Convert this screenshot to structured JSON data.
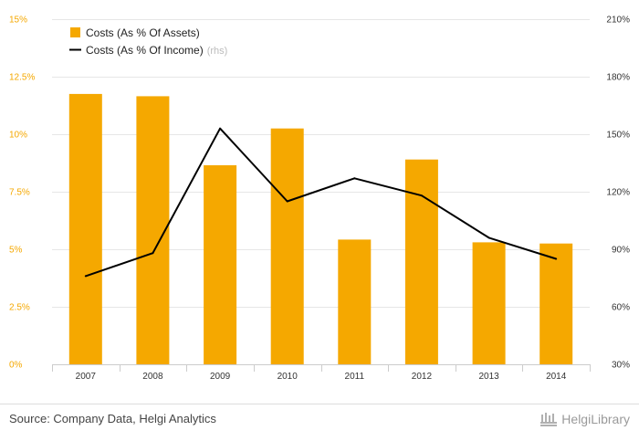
{
  "chart_data": {
    "type": "bar",
    "categories": [
      "2007",
      "2008",
      "2009",
      "2010",
      "2011",
      "2012",
      "2013",
      "2014"
    ],
    "series": [
      {
        "name": "Costs (As % Of Assets)",
        "type": "bar",
        "axis": "left",
        "color": "#f5a800",
        "values": [
          11.75,
          11.65,
          8.65,
          10.25,
          5.42,
          8.9,
          5.3,
          5.25
        ]
      },
      {
        "name": "Costs (As % Of Income)",
        "type": "line",
        "axis": "right",
        "color": "#000000",
        "values": [
          76,
          88,
          153,
          115,
          127,
          118,
          96,
          85
        ]
      }
    ],
    "left_axis": {
      "ylim": [
        0,
        15
      ],
      "ticks": [
        0,
        2.5,
        5,
        7.5,
        10,
        12.5,
        15
      ],
      "tick_labels": [
        "0%",
        "2.5%",
        "5%",
        "7.5%",
        "10%",
        "12.5%",
        "15%"
      ]
    },
    "right_axis": {
      "ylim": [
        30,
        210
      ],
      "ticks": [
        30,
        60,
        90,
        120,
        150,
        180,
        210
      ],
      "tick_labels": [
        "30%",
        "60%",
        "90%",
        "120%",
        "150%",
        "180%",
        "210%"
      ]
    },
    "grid": true,
    "legend": {
      "placement": "top-left",
      "entries": [
        {
          "label": "Costs (As % Of Assets)",
          "suffix": ""
        },
        {
          "label": "Costs (As % Of Income)",
          "suffix": "(rhs)"
        }
      ]
    }
  },
  "footer": {
    "source": "Source: Company Data, Helgi Analytics",
    "brand": "HelgiLibrary"
  }
}
